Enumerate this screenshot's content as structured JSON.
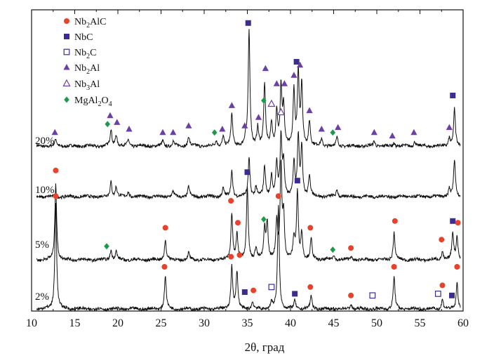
{
  "chart_data": {
    "type": "line",
    "xlabel": "2θ, град",
    "ylabel": "",
    "xlim": [
      10,
      60
    ],
    "xticks": [
      10,
      15,
      20,
      25,
      30,
      35,
      40,
      45,
      50,
      55,
      60
    ],
    "grid": false,
    "legend": {
      "placement": "top-left",
      "entries": [
        {
          "name": "Nb2AlC",
          "main": "Nb",
          "sub": "2",
          "rest": "AlC",
          "marker": "circle",
          "color": "#e8432a"
        },
        {
          "name": "NbC",
          "main": "NbC",
          "sub": "",
          "rest": "",
          "marker": "square",
          "color": "#3b2d8f"
        },
        {
          "name": "Nb2C",
          "main": "Nb",
          "sub": "2",
          "rest": "C",
          "marker": "square-open",
          "color": "#3b2d8f"
        },
        {
          "name": "Nb2Al",
          "main": "Nb",
          "sub": "2",
          "rest": "Al",
          "marker": "triangle",
          "color": "#6a3fa8"
        },
        {
          "name": "Nb3Al",
          "main": "Nb",
          "sub": "3",
          "rest": "Al",
          "marker": "triangle-open",
          "color": "#6a3fa8"
        },
        {
          "name": "MgAl2O4",
          "main": "MgAl",
          "sub": "2",
          "rest": "O",
          "sub2": "4",
          "marker": "diamond",
          "color": "#1a9a4a"
        }
      ]
    },
    "series": [
      {
        "name": "20%",
        "baseline": 0.0,
        "peaks": [
          [
            12.8,
            0.4
          ],
          [
            19.2,
            1.0
          ],
          [
            19.8,
            0.7
          ],
          [
            21.2,
            0.4
          ],
          [
            25.2,
            0.3
          ],
          [
            26.4,
            0.3
          ],
          [
            28.2,
            0.6
          ],
          [
            31.4,
            0.3
          ],
          [
            32.2,
            0.6
          ],
          [
            33.2,
            1.9
          ],
          [
            34.8,
            0.4
          ],
          [
            35.2,
            6.8
          ],
          [
            36.2,
            1.1
          ],
          [
            37.0,
            3.6
          ],
          [
            37.8,
            1.4
          ],
          [
            38.4,
            2.0
          ],
          [
            38.9,
            3.5
          ],
          [
            39.2,
            2.2
          ],
          [
            40.4,
            3.3
          ],
          [
            40.9,
            4.2
          ],
          [
            41.3,
            3.6
          ],
          [
            42.2,
            1.5
          ],
          [
            43.6,
            0.4
          ],
          [
            45.4,
            0.5
          ],
          [
            49.7,
            0.3
          ],
          [
            52.0,
            0.2
          ],
          [
            54.4,
            0.3
          ],
          [
            58.4,
            0.5
          ],
          [
            59.0,
            2.2
          ]
        ],
        "markers": [
          {
            "x": 12.7,
            "y": 0.8,
            "marker": "triangle"
          },
          {
            "x": 19.1,
            "y": 1.8,
            "marker": "triangle"
          },
          {
            "x": 18.8,
            "y": 1.3,
            "marker": "diamond"
          },
          {
            "x": 19.9,
            "y": 1.4,
            "marker": "triangle"
          },
          {
            "x": 21.3,
            "y": 1.0,
            "marker": "triangle"
          },
          {
            "x": 25.2,
            "y": 0.8,
            "marker": "triangle"
          },
          {
            "x": 26.4,
            "y": 0.8,
            "marker": "triangle"
          },
          {
            "x": 28.2,
            "y": 1.2,
            "marker": "triangle"
          },
          {
            "x": 31.2,
            "y": 0.8,
            "marker": "diamond"
          },
          {
            "x": 32.1,
            "y": 1.0,
            "marker": "triangle"
          },
          {
            "x": 33.2,
            "y": 2.4,
            "marker": "triangle"
          },
          {
            "x": 34.7,
            "y": 1.2,
            "marker": "triangle"
          },
          {
            "x": 35.1,
            "y": 7.3,
            "marker": "square"
          },
          {
            "x": 36.3,
            "y": 1.7,
            "marker": "triangle"
          },
          {
            "x": 36.9,
            "y": 2.7,
            "marker": "diamond"
          },
          {
            "x": 37.1,
            "y": 4.6,
            "marker": "triangle"
          },
          {
            "x": 37.8,
            "y": 2.5,
            "marker": "triangle-open"
          },
          {
            "x": 38.4,
            "y": 3.7,
            "marker": "triangle"
          },
          {
            "x": 38.9,
            "y": 2.0,
            "marker": "triangle-open"
          },
          {
            "x": 39.3,
            "y": 3.7,
            "marker": "triangle"
          },
          {
            "x": 40.4,
            "y": 4.2,
            "marker": "triangle"
          },
          {
            "x": 40.7,
            "y": 5.0,
            "marker": "square"
          },
          {
            "x": 41.1,
            "y": 4.8,
            "marker": "triangle"
          },
          {
            "x": 42.2,
            "y": 2.1,
            "marker": "triangle"
          },
          {
            "x": 43.6,
            "y": 1.0,
            "marker": "triangle"
          },
          {
            "x": 44.9,
            "y": 0.8,
            "marker": "diamond"
          },
          {
            "x": 45.5,
            "y": 1.1,
            "marker": "triangle"
          },
          {
            "x": 49.7,
            "y": 0.8,
            "marker": "triangle"
          },
          {
            "x": 51.8,
            "y": 0.6,
            "marker": "triangle"
          },
          {
            "x": 54.3,
            "y": 0.8,
            "marker": "triangle"
          },
          {
            "x": 58.4,
            "y": 1.1,
            "marker": "triangle"
          },
          {
            "x": 58.8,
            "y": 3.0,
            "marker": "square"
          }
        ]
      },
      {
        "name": "10%",
        "baseline": 0.0,
        "peaks": [
          [
            19.2,
            0.9
          ],
          [
            19.8,
            0.6
          ],
          [
            21.2,
            0.3
          ],
          [
            26.4,
            0.3
          ],
          [
            28.2,
            0.6
          ],
          [
            32.2,
            0.5
          ],
          [
            33.2,
            1.5
          ],
          [
            35.2,
            2.3
          ],
          [
            36.0,
            0.6
          ],
          [
            37.0,
            1.8
          ],
          [
            37.8,
            1.3
          ],
          [
            38.4,
            2.0
          ],
          [
            38.9,
            3.5
          ],
          [
            39.2,
            2.0
          ],
          [
            40.4,
            2.0
          ],
          [
            40.9,
            3.5
          ],
          [
            41.3,
            3.0
          ],
          [
            42.2,
            1.3
          ],
          [
            45.4,
            0.4
          ],
          [
            58.4,
            0.5
          ],
          [
            59.0,
            2.2
          ]
        ],
        "markers": []
      },
      {
        "name": "5%",
        "baseline": 0.0,
        "peaks": [
          [
            12.8,
            4.6
          ],
          [
            19.2,
            0.6
          ],
          [
            19.8,
            0.5
          ],
          [
            25.5,
            1.2
          ],
          [
            28.2,
            0.4
          ],
          [
            33.2,
            2.8
          ],
          [
            33.8,
            1.5
          ],
          [
            35.0,
            4.4
          ],
          [
            36.0,
            0.7
          ],
          [
            37.0,
            1.8
          ],
          [
            37.3,
            2.2
          ],
          [
            38.4,
            2.2
          ],
          [
            38.9,
            5.5
          ],
          [
            39.2,
            2.5
          ],
          [
            40.4,
            1.2
          ],
          [
            40.8,
            4.0
          ],
          [
            41.3,
            1.6
          ],
          [
            42.4,
            1.2
          ],
          [
            45.0,
            0.3
          ],
          [
            47.0,
            0.2
          ],
          [
            52.0,
            1.6
          ],
          [
            57.6,
            0.5
          ],
          [
            58.8,
            1.6
          ],
          [
            59.3,
            1.4
          ]
        ],
        "markers": [
          {
            "x": 12.8,
            "y": 5.3,
            "marker": "circle"
          },
          {
            "x": 18.7,
            "y": 0.8,
            "marker": "diamond"
          },
          {
            "x": 25.5,
            "y": 1.9,
            "marker": "circle"
          },
          {
            "x": 33.1,
            "y": 3.5,
            "marker": "circle"
          },
          {
            "x": 33.9,
            "y": 2.2,
            "marker": "circle"
          },
          {
            "x": 35.0,
            "y": 5.2,
            "marker": "square"
          },
          {
            "x": 36.9,
            "y": 2.4,
            "marker": "diamond"
          },
          {
            "x": 40.8,
            "y": 4.7,
            "marker": "square"
          },
          {
            "x": 42.3,
            "y": 1.9,
            "marker": "circle"
          },
          {
            "x": 44.9,
            "y": 0.6,
            "marker": "diamond"
          },
          {
            "x": 47.0,
            "y": 0.7,
            "marker": "circle"
          },
          {
            "x": 52.1,
            "y": 2.3,
            "marker": "circle"
          },
          {
            "x": 57.5,
            "y": 1.2,
            "marker": "circle"
          },
          {
            "x": 58.8,
            "y": 2.3,
            "marker": "square"
          },
          {
            "x": 59.4,
            "y": 2.2,
            "marker": "circle"
          }
        ]
      },
      {
        "name": "2%",
        "baseline": 0.0,
        "peaks": [
          [
            12.8,
            6.3
          ],
          [
            25.5,
            2.0
          ],
          [
            33.2,
            2.6
          ],
          [
            33.8,
            2.2
          ],
          [
            35.6,
            0.4
          ],
          [
            37.8,
            0.4
          ],
          [
            38.6,
            6.1
          ],
          [
            40.5,
            0.5
          ],
          [
            42.4,
            0.8
          ],
          [
            47.0,
            0.3
          ],
          [
            52.0,
            1.9
          ],
          [
            57.6,
            0.6
          ],
          [
            59.3,
            1.6
          ]
        ],
        "markers": [
          {
            "x": 12.8,
            "y": 6.7,
            "marker": "circle"
          },
          {
            "x": 25.4,
            "y": 2.5,
            "marker": "circle"
          },
          {
            "x": 33.1,
            "y": 3.1,
            "marker": "circle"
          },
          {
            "x": 34.1,
            "y": 3.2,
            "marker": "circle"
          },
          {
            "x": 34.7,
            "y": 1.0,
            "marker": "square"
          },
          {
            "x": 35.7,
            "y": 1.1,
            "marker": "circle"
          },
          {
            "x": 37.8,
            "y": 1.3,
            "marker": "square-open"
          },
          {
            "x": 38.6,
            "y": 6.7,
            "marker": "circle"
          },
          {
            "x": 40.5,
            "y": 0.9,
            "marker": "square"
          },
          {
            "x": 42.3,
            "y": 1.3,
            "marker": "circle"
          },
          {
            "x": 47.0,
            "y": 0.8,
            "marker": "circle"
          },
          {
            "x": 49.5,
            "y": 0.8,
            "marker": "square-open"
          },
          {
            "x": 52.0,
            "y": 2.5,
            "marker": "circle"
          },
          {
            "x": 57.1,
            "y": 0.9,
            "marker": "square-open"
          },
          {
            "x": 57.6,
            "y": 1.4,
            "marker": "circle"
          },
          {
            "x": 58.7,
            "y": 0.8,
            "marker": "square"
          },
          {
            "x": 59.3,
            "y": 2.5,
            "marker": "circle"
          }
        ]
      }
    ]
  }
}
